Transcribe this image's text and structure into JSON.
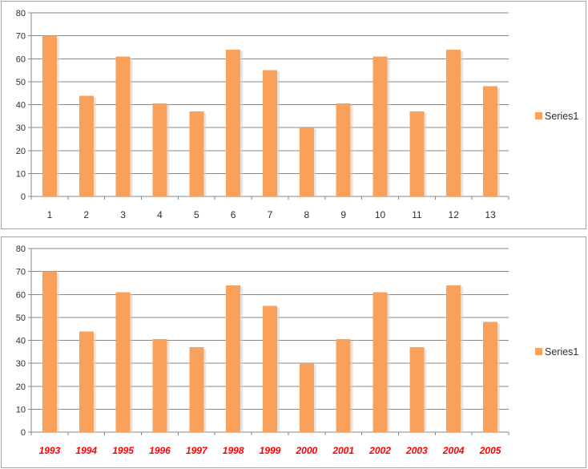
{
  "window": {
    "background": "#ffffff"
  },
  "colors": {
    "bar_fill": "#F9A05A",
    "bar_shadow": "#CFCFCF",
    "gridline": "#8A8A8A",
    "axis": "#8A8A8A",
    "frame_border": "#A3A3A3",
    "tick_label": "#2E2E2E",
    "legend_label_color": "#2E2E2E",
    "year_label_color": "#FF0000"
  },
  "chart_data": [
    {
      "type": "bar",
      "title": "",
      "categories": [
        "1",
        "2",
        "3",
        "4",
        "5",
        "6",
        "7",
        "8",
        "9",
        "10",
        "11",
        "12",
        "13"
      ],
      "series": [
        {
          "name": "Series1",
          "values": [
            70,
            43.8,
            61,
            40.6,
            37,
            64,
            55,
            30,
            40.6,
            61,
            37,
            64,
            48
          ]
        }
      ],
      "ylim": [
        0,
        80
      ],
      "yticks": [
        0,
        10,
        20,
        30,
        40,
        50,
        60,
        70,
        80
      ],
      "grid": true,
      "legend_position": "right",
      "xtick_style": {
        "color": "#2E2E2E",
        "bold": false,
        "italic": false
      }
    },
    {
      "type": "bar",
      "title": "",
      "categories": [
        "1993",
        "1994",
        "1995",
        "1996",
        "1997",
        "1998",
        "1999",
        "2000",
        "2001",
        "2002",
        "2003",
        "2004",
        "2005"
      ],
      "series": [
        {
          "name": "Series1",
          "values": [
            70,
            43.8,
            61,
            40.6,
            37,
            64,
            55,
            30,
            40.6,
            61,
            37,
            64,
            48
          ]
        }
      ],
      "ylim": [
        0,
        80
      ],
      "yticks": [
        0,
        10,
        20,
        30,
        40,
        50,
        60,
        70,
        80
      ],
      "grid": true,
      "legend_position": "right",
      "xtick_style": {
        "color": "#FF0000",
        "bold": true,
        "italic": true
      }
    }
  ]
}
